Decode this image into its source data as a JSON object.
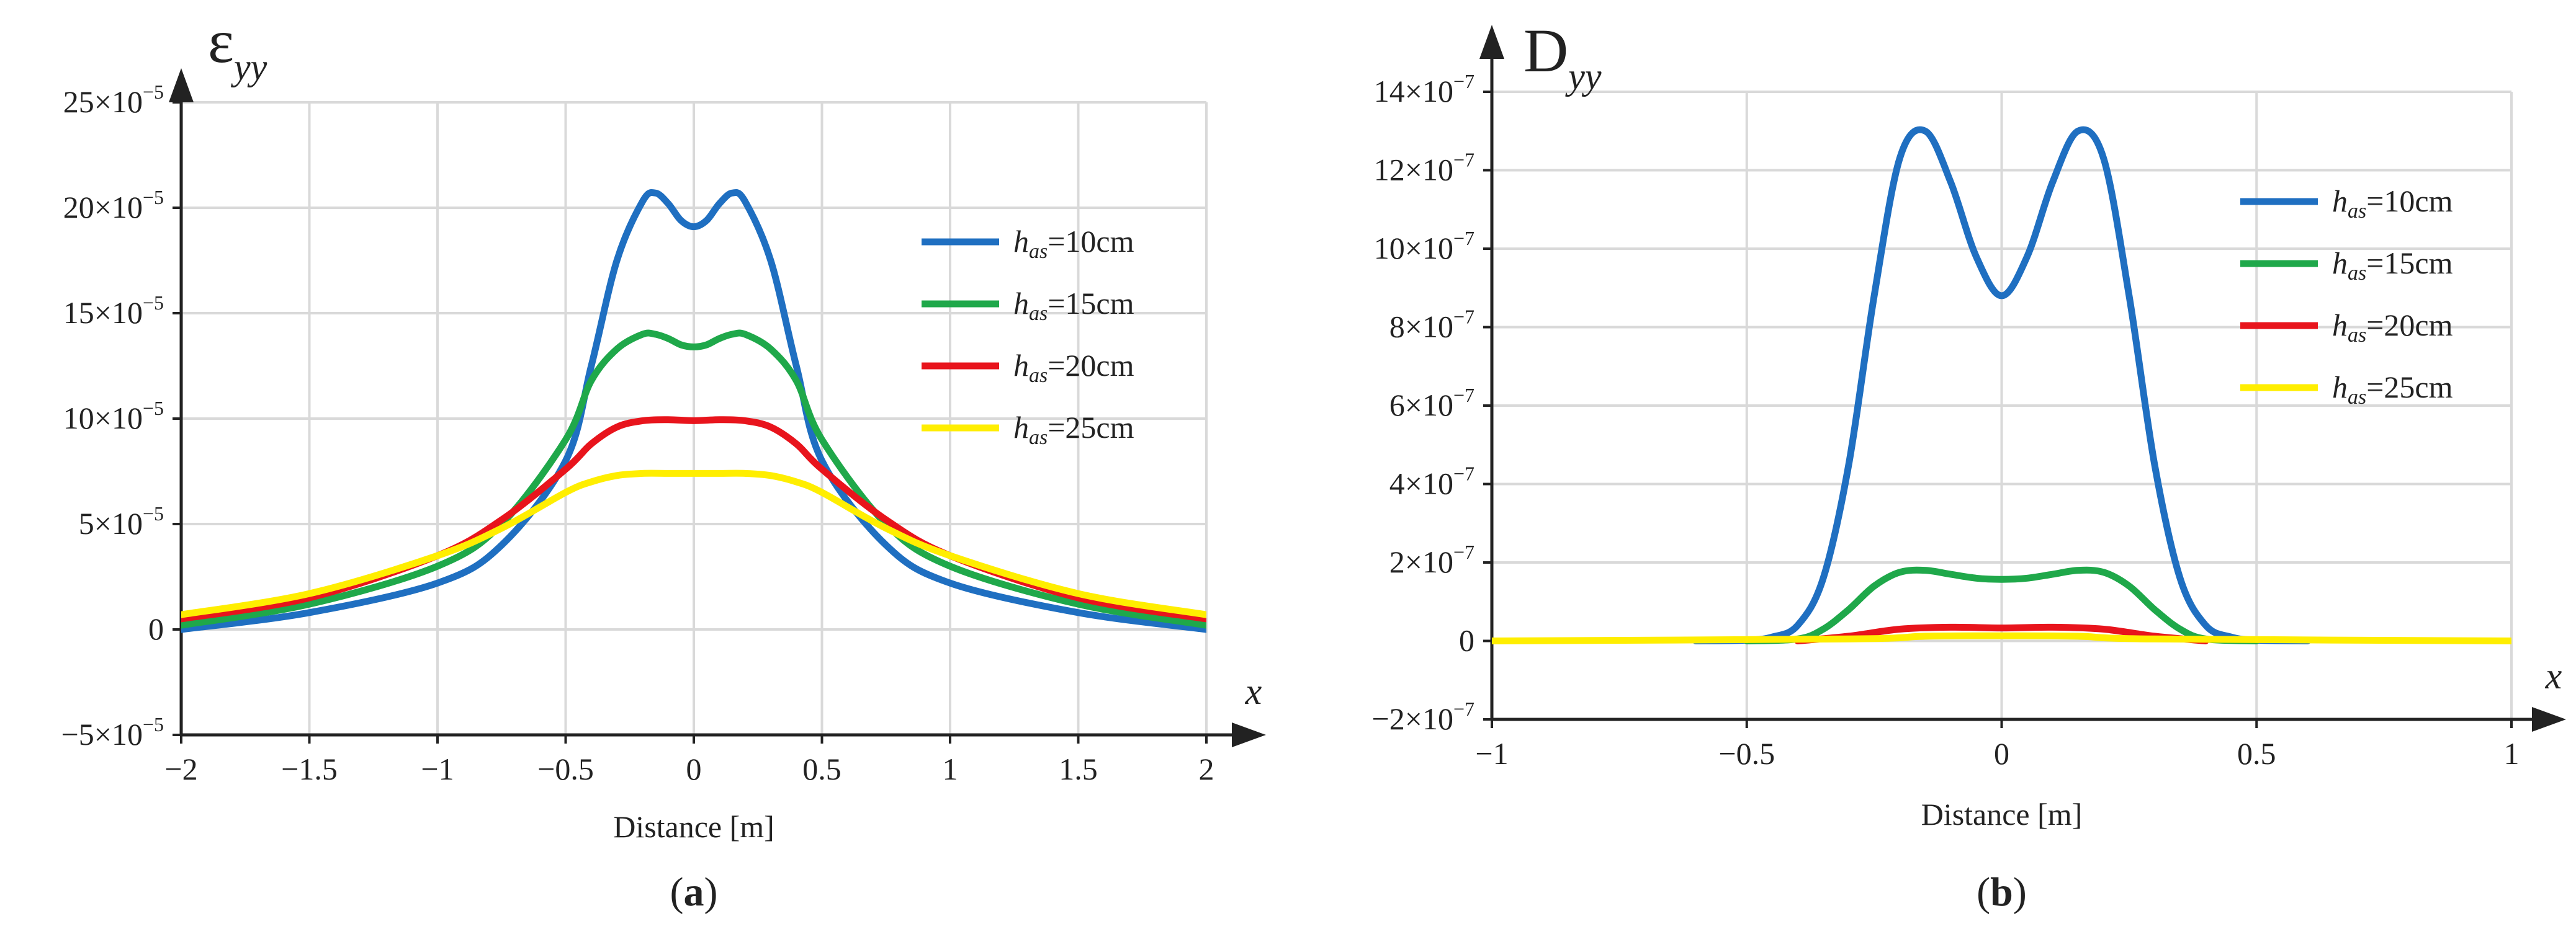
{
  "chart_data": [
    {
      "type": "line",
      "panel_label": "(a)",
      "panel_letter": "a",
      "y_symbol": "ε",
      "y_subscript": "yy",
      "x_arrow_label": "x",
      "xlabel": "Distance [m]",
      "xlim": [
        -2,
        2
      ],
      "ylim": [
        -5,
        25
      ],
      "y_exponent": "−5",
      "x_ticks": [
        -2,
        -1.5,
        -1,
        -0.5,
        0,
        0.5,
        1,
        1.5,
        2
      ],
      "x_tick_labels": [
        "−2",
        "−1.5",
        "−1",
        "−0.5",
        "0",
        "0.5",
        "1",
        "1.5",
        "2"
      ],
      "y_ticks": [
        -5,
        0,
        5,
        10,
        15,
        20,
        25
      ],
      "y_tick_labels": [
        "−5×10",
        "0",
        "5×10",
        "10×10",
        "15×10",
        "20×10",
        "25×10"
      ],
      "grid": true,
      "legend_position": "right",
      "series": [
        {
          "name_var": "h",
          "name_sub": "as",
          "name_value": "=10cm",
          "color": "#1f6fc1",
          "x": [
            -2,
            -1.5,
            -1,
            -0.75,
            -0.5,
            -0.4,
            -0.3,
            -0.2,
            -0.15,
            -0.1,
            -0.05,
            0,
            0.05,
            0.1,
            0.15,
            0.2,
            0.3,
            0.4,
            0.5,
            0.75,
            1,
            1.5,
            2
          ],
          "y": [
            0,
            0.8,
            2.2,
            4,
            8,
            12.5,
            17.5,
            20.3,
            20.7,
            20.2,
            19.4,
            19.1,
            19.4,
            20.2,
            20.7,
            20.3,
            17.5,
            12.5,
            8,
            4,
            2.2,
            0.8,
            0
          ]
        },
        {
          "name_var": "h",
          "name_sub": "as",
          "name_value": "=15cm",
          "color": "#1fa84a",
          "x": [
            -2,
            -1.5,
            -1,
            -0.75,
            -0.5,
            -0.4,
            -0.3,
            -0.2,
            -0.15,
            -0.1,
            -0.05,
            0,
            0.05,
            0.1,
            0.15,
            0.2,
            0.3,
            0.4,
            0.5,
            0.75,
            1,
            1.5,
            2
          ],
          "y": [
            0.2,
            1.2,
            3,
            5,
            9,
            11.8,
            13.3,
            14,
            14,
            13.8,
            13.5,
            13.4,
            13.5,
            13.8,
            14,
            14,
            13.3,
            11.8,
            9,
            5,
            3,
            1.2,
            0.2
          ]
        },
        {
          "name_var": "h",
          "name_sub": "as",
          "name_value": "=20cm",
          "color": "#e8141c",
          "x": [
            -2,
            -1.5,
            -1,
            -0.75,
            -0.5,
            -0.4,
            -0.3,
            -0.2,
            -0.1,
            0,
            0.1,
            0.2,
            0.3,
            0.4,
            0.5,
            0.75,
            1,
            1.5,
            2
          ],
          "y": [
            0.5,
            1.5,
            3.5,
            5.2,
            7.6,
            8.8,
            9.6,
            9.9,
            9.95,
            9.9,
            9.95,
            9.9,
            9.6,
            8.8,
            7.6,
            5.2,
            3.5,
            1.5,
            0.5
          ]
        },
        {
          "name_var": "h",
          "name_sub": "as",
          "name_value": "=25cm",
          "color": "#ffee00",
          "x": [
            -2,
            -1.5,
            -1,
            -0.75,
            -0.5,
            -0.4,
            -0.3,
            -0.2,
            -0.1,
            0,
            0.1,
            0.2,
            0.3,
            0.4,
            0.5,
            0.75,
            1,
            1.5,
            2
          ],
          "y": [
            0.7,
            1.7,
            3.5,
            4.8,
            6.5,
            7.0,
            7.3,
            7.4,
            7.4,
            7.4,
            7.4,
            7.4,
            7.3,
            7.0,
            6.5,
            4.8,
            3.5,
            1.7,
            0.7
          ]
        }
      ]
    },
    {
      "type": "line",
      "panel_label": "(b)",
      "panel_letter": "b",
      "y_symbol": "D",
      "y_subscript": "yy",
      "x_arrow_label": "x",
      "xlabel": "Distance [m]",
      "xlim": [
        -1,
        1
      ],
      "ylim": [
        -2,
        14
      ],
      "y_exponent": "−7",
      "x_ticks": [
        -1,
        -0.5,
        0,
        0.5,
        1
      ],
      "x_tick_labels": [
        "−1",
        "−0.5",
        "0",
        "0.5",
        "1"
      ],
      "y_ticks": [
        -2,
        0,
        2,
        4,
        6,
        8,
        10,
        12,
        14
      ],
      "y_tick_labels": [
        "−2×10",
        "0",
        "2×10",
        "4×10",
        "6×10",
        "8×10",
        "10×10",
        "12×10",
        "14×10"
      ],
      "grid": true,
      "legend_position": "top-right",
      "series": [
        {
          "name_var": "h",
          "name_sub": "as",
          "name_value": "=10cm",
          "color": "#1f6fc1",
          "x": [
            -0.6,
            -0.5,
            -0.45,
            -0.4,
            -0.35,
            -0.3,
            -0.25,
            -0.2,
            -0.15,
            -0.1,
            -0.05,
            0,
            0.05,
            0.1,
            0.15,
            0.2,
            0.25,
            0.3,
            0.35,
            0.4,
            0.45,
            0.5,
            0.6
          ],
          "y": [
            0,
            0.02,
            0.1,
            0.4,
            1.6,
            4.5,
            8.8,
            12.3,
            13.0,
            11.7,
            9.8,
            8.8,
            9.8,
            11.7,
            13.0,
            12.3,
            8.8,
            4.5,
            1.6,
            0.4,
            0.1,
            0.02,
            0
          ]
        },
        {
          "name_var": "h",
          "name_sub": "as",
          "name_value": "=15cm",
          "color": "#1fa84a",
          "x": [
            -0.5,
            -0.4,
            -0.35,
            -0.3,
            -0.25,
            -0.2,
            -0.15,
            -0.1,
            -0.05,
            0,
            0.05,
            0.1,
            0.15,
            0.2,
            0.25,
            0.3,
            0.35,
            0.4,
            0.5
          ],
          "y": [
            0,
            0.05,
            0.3,
            0.8,
            1.4,
            1.75,
            1.8,
            1.7,
            1.6,
            1.57,
            1.6,
            1.7,
            1.8,
            1.75,
            1.4,
            0.8,
            0.3,
            0.05,
            0
          ]
        },
        {
          "name_var": "h",
          "name_sub": "as",
          "name_value": "=20cm",
          "color": "#e8141c",
          "x": [
            -0.4,
            -0.3,
            -0.2,
            -0.1,
            0,
            0.1,
            0.2,
            0.3,
            0.4
          ],
          "y": [
            0,
            0.12,
            0.3,
            0.35,
            0.33,
            0.35,
            0.3,
            0.12,
            0
          ]
        },
        {
          "name_var": "h",
          "name_sub": "as",
          "name_value": "=25cm",
          "color": "#ffee00",
          "x": [
            -1,
            -0.3,
            -0.15,
            0,
            0.15,
            0.3,
            1
          ],
          "y": [
            0,
            0.05,
            0.12,
            0.13,
            0.12,
            0.05,
            0
          ]
        }
      ]
    }
  ]
}
